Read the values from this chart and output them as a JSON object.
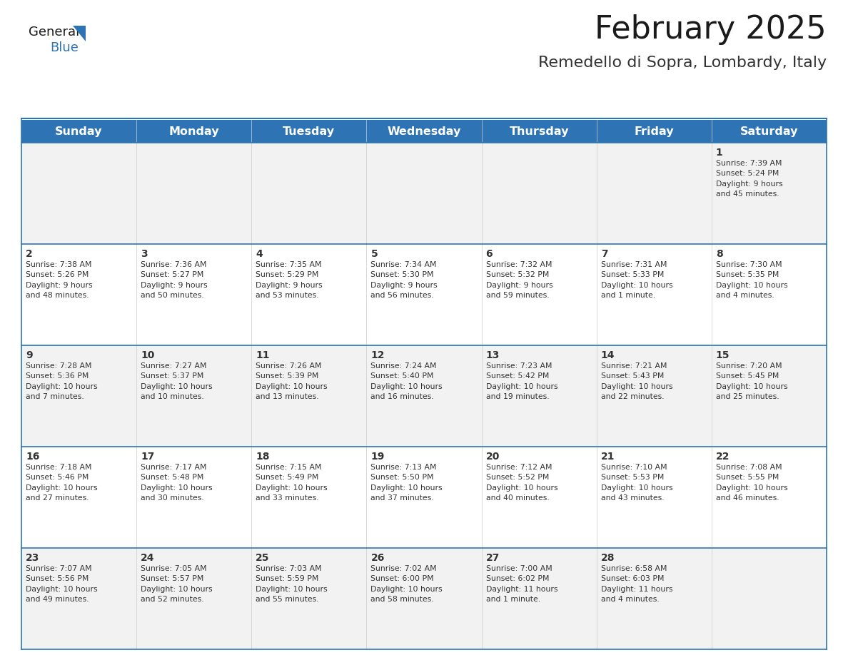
{
  "title": "February 2025",
  "subtitle": "Remedello di Sopra, Lombardy, Italy",
  "header_color": "#2e74b5",
  "header_text_color": "#ffffff",
  "cell_bg_light": "#f2f2f2",
  "cell_bg_white": "#ffffff",
  "border_color": "#2e74b5",
  "text_color": "#333333",
  "day_names": [
    "Sunday",
    "Monday",
    "Tuesday",
    "Wednesday",
    "Thursday",
    "Friday",
    "Saturday"
  ],
  "title_fontsize": 32,
  "subtitle_fontsize": 16,
  "header_fontsize": 11.5,
  "day_number_fontsize": 10,
  "cell_text_fontsize": 7.8,
  "logo_general_fontsize": 13,
  "logo_blue_fontsize": 13,
  "logo_color_general": "#1a1a1a",
  "logo_color_blue": "#2e74b5",
  "triangle_color": "#2e74b5",
  "calendar": [
    [
      {
        "day": "",
        "info": ""
      },
      {
        "day": "",
        "info": ""
      },
      {
        "day": "",
        "info": ""
      },
      {
        "day": "",
        "info": ""
      },
      {
        "day": "",
        "info": ""
      },
      {
        "day": "",
        "info": ""
      },
      {
        "day": "1",
        "info": "Sunrise: 7:39 AM\nSunset: 5:24 PM\nDaylight: 9 hours\nand 45 minutes."
      }
    ],
    [
      {
        "day": "2",
        "info": "Sunrise: 7:38 AM\nSunset: 5:26 PM\nDaylight: 9 hours\nand 48 minutes."
      },
      {
        "day": "3",
        "info": "Sunrise: 7:36 AM\nSunset: 5:27 PM\nDaylight: 9 hours\nand 50 minutes."
      },
      {
        "day": "4",
        "info": "Sunrise: 7:35 AM\nSunset: 5:29 PM\nDaylight: 9 hours\nand 53 minutes."
      },
      {
        "day": "5",
        "info": "Sunrise: 7:34 AM\nSunset: 5:30 PM\nDaylight: 9 hours\nand 56 minutes."
      },
      {
        "day": "6",
        "info": "Sunrise: 7:32 AM\nSunset: 5:32 PM\nDaylight: 9 hours\nand 59 minutes."
      },
      {
        "day": "7",
        "info": "Sunrise: 7:31 AM\nSunset: 5:33 PM\nDaylight: 10 hours\nand 1 minute."
      },
      {
        "day": "8",
        "info": "Sunrise: 7:30 AM\nSunset: 5:35 PM\nDaylight: 10 hours\nand 4 minutes."
      }
    ],
    [
      {
        "day": "9",
        "info": "Sunrise: 7:28 AM\nSunset: 5:36 PM\nDaylight: 10 hours\nand 7 minutes."
      },
      {
        "day": "10",
        "info": "Sunrise: 7:27 AM\nSunset: 5:37 PM\nDaylight: 10 hours\nand 10 minutes."
      },
      {
        "day": "11",
        "info": "Sunrise: 7:26 AM\nSunset: 5:39 PM\nDaylight: 10 hours\nand 13 minutes."
      },
      {
        "day": "12",
        "info": "Sunrise: 7:24 AM\nSunset: 5:40 PM\nDaylight: 10 hours\nand 16 minutes."
      },
      {
        "day": "13",
        "info": "Sunrise: 7:23 AM\nSunset: 5:42 PM\nDaylight: 10 hours\nand 19 minutes."
      },
      {
        "day": "14",
        "info": "Sunrise: 7:21 AM\nSunset: 5:43 PM\nDaylight: 10 hours\nand 22 minutes."
      },
      {
        "day": "15",
        "info": "Sunrise: 7:20 AM\nSunset: 5:45 PM\nDaylight: 10 hours\nand 25 minutes."
      }
    ],
    [
      {
        "day": "16",
        "info": "Sunrise: 7:18 AM\nSunset: 5:46 PM\nDaylight: 10 hours\nand 27 minutes."
      },
      {
        "day": "17",
        "info": "Sunrise: 7:17 AM\nSunset: 5:48 PM\nDaylight: 10 hours\nand 30 minutes."
      },
      {
        "day": "18",
        "info": "Sunrise: 7:15 AM\nSunset: 5:49 PM\nDaylight: 10 hours\nand 33 minutes."
      },
      {
        "day": "19",
        "info": "Sunrise: 7:13 AM\nSunset: 5:50 PM\nDaylight: 10 hours\nand 37 minutes."
      },
      {
        "day": "20",
        "info": "Sunrise: 7:12 AM\nSunset: 5:52 PM\nDaylight: 10 hours\nand 40 minutes."
      },
      {
        "day": "21",
        "info": "Sunrise: 7:10 AM\nSunset: 5:53 PM\nDaylight: 10 hours\nand 43 minutes."
      },
      {
        "day": "22",
        "info": "Sunrise: 7:08 AM\nSunset: 5:55 PM\nDaylight: 10 hours\nand 46 minutes."
      }
    ],
    [
      {
        "day": "23",
        "info": "Sunrise: 7:07 AM\nSunset: 5:56 PM\nDaylight: 10 hours\nand 49 minutes."
      },
      {
        "day": "24",
        "info": "Sunrise: 7:05 AM\nSunset: 5:57 PM\nDaylight: 10 hours\nand 52 minutes."
      },
      {
        "day": "25",
        "info": "Sunrise: 7:03 AM\nSunset: 5:59 PM\nDaylight: 10 hours\nand 55 minutes."
      },
      {
        "day": "26",
        "info": "Sunrise: 7:02 AM\nSunset: 6:00 PM\nDaylight: 10 hours\nand 58 minutes."
      },
      {
        "day": "27",
        "info": "Sunrise: 7:00 AM\nSunset: 6:02 PM\nDaylight: 11 hours\nand 1 minute."
      },
      {
        "day": "28",
        "info": "Sunrise: 6:58 AM\nSunset: 6:03 PM\nDaylight: 11 hours\nand 4 minutes."
      },
      {
        "day": "",
        "info": ""
      }
    ]
  ]
}
